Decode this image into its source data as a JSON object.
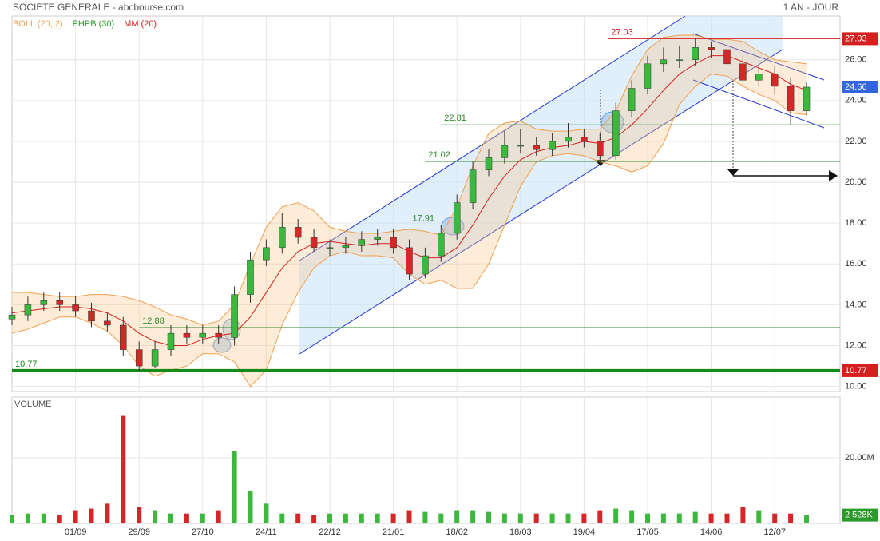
{
  "chart_data": {
    "type": "candlestick",
    "title": "SOCIETE GENERALE - abcbourse.com",
    "period": "1 AN - JOUR",
    "indicators": [
      {
        "name": "BOLL (20, 2)",
        "color": "#f0a050"
      },
      {
        "name": "PHPB (30)",
        "color": "#2a9a2a"
      },
      {
        "name": "MM (20)",
        "color": "#d62020"
      }
    ],
    "up_color": "#3cb83c",
    "down_color": "#d62728",
    "grid": true,
    "categories": [
      null,
      null,
      null,
      null,
      "01/09",
      null,
      null,
      null,
      "29/09",
      null,
      null,
      null,
      "27/10",
      null,
      null,
      null,
      "24/11",
      null,
      null,
      null,
      "22/12",
      null,
      null,
      null,
      "21/01",
      null,
      null,
      null,
      "18/02",
      null,
      null,
      null,
      "18/03",
      null,
      null,
      null,
      "19/04",
      null,
      null,
      null,
      "17/05",
      null,
      null,
      null,
      "14/06",
      null,
      null,
      null,
      "12/07",
      null,
      null
    ],
    "open": [
      13.3,
      13.5,
      14.0,
      14.2,
      14.0,
      13.7,
      13.2,
      13.0,
      11.8,
      11.0,
      11.8,
      12.6,
      12.4,
      12.6,
      12.4,
      14.5,
      16.2,
      16.8,
      17.8,
      17.3,
      16.8,
      16.8,
      16.9,
      17.2,
      17.3,
      16.8,
      15.5,
      16.4,
      17.5,
      19.0,
      20.6,
      21.2,
      21.8,
      21.8,
      21.6,
      22.0,
      22.2,
      22.0,
      21.3,
      23.5,
      24.6,
      25.8,
      26.0,
      26.0,
      26.6,
      26.5,
      25.8,
      25.0,
      25.3,
      24.7,
      23.5
    ],
    "high": [
      13.9,
      14.4,
      14.6,
      14.6,
      14.4,
      14.1,
      13.6,
      13.4,
      12.2,
      12.2,
      13.0,
      13.0,
      13.0,
      13.0,
      14.9,
      16.6,
      17.2,
      18.5,
      18.2,
      17.7,
      17.2,
      17.3,
      17.6,
      17.7,
      17.7,
      17.2,
      16.8,
      17.9,
      19.4,
      21.0,
      21.6,
      22.5,
      22.6,
      22.2,
      22.4,
      22.9,
      22.6,
      22.4,
      23.9,
      25.0,
      26.2,
      26.6,
      26.7,
      27.03,
      26.9,
      26.9,
      26.2,
      25.7,
      25.7,
      25.1,
      24.9
    ],
    "low": [
      13.0,
      13.2,
      13.7,
      13.7,
      13.4,
      12.9,
      12.7,
      11.5,
      10.77,
      10.9,
      11.5,
      12.1,
      12.1,
      12.1,
      12.0,
      14.1,
      15.9,
      16.5,
      17.0,
      16.6,
      16.4,
      16.5,
      16.6,
      16.9,
      16.5,
      15.2,
      15.3,
      16.1,
      17.2,
      18.7,
      20.3,
      20.9,
      21.4,
      21.3,
      21.3,
      21.7,
      21.7,
      20.9,
      21.1,
      23.2,
      24.3,
      25.4,
      25.6,
      25.7,
      26.1,
      25.5,
      24.6,
      24.7,
      24.3,
      22.8,
      23.3
    ],
    "close": [
      13.5,
      14.0,
      14.2,
      14.0,
      13.7,
      13.2,
      13.0,
      11.8,
      11.0,
      11.8,
      12.6,
      12.4,
      12.6,
      12.4,
      14.5,
      16.2,
      16.8,
      17.8,
      17.3,
      16.8,
      16.8,
      16.9,
      17.2,
      17.3,
      16.8,
      15.5,
      16.4,
      17.5,
      19.0,
      20.6,
      21.2,
      21.8,
      21.8,
      21.6,
      22.0,
      22.2,
      22.0,
      21.3,
      23.5,
      24.6,
      25.8,
      26.0,
      26.0,
      26.6,
      26.5,
      25.8,
      25.0,
      25.3,
      24.7,
      23.5,
      24.66
    ],
    "mm": [
      13.6,
      13.7,
      13.8,
      13.9,
      13.9,
      13.8,
      13.6,
      13.2,
      12.6,
      12.2,
      12.0,
      12.0,
      12.3,
      12.5,
      12.6,
      13.4,
      14.6,
      15.8,
      16.6,
      17.0,
      17.1,
      17.0,
      16.9,
      17.0,
      17.0,
      16.6,
      16.3,
      16.3,
      16.8,
      17.9,
      19.2,
      20.3,
      21.1,
      21.5,
      21.7,
      21.8,
      22.0,
      21.9,
      22.2,
      22.8,
      23.6,
      24.5,
      25.3,
      25.8,
      26.2,
      26.2,
      25.9,
      25.6,
      25.3,
      24.8,
      24.5
    ],
    "bollinger_upper": [
      14.6,
      14.6,
      14.5,
      14.4,
      14.4,
      14.5,
      14.5,
      14.4,
      14.2,
      13.9,
      13.5,
      13.3,
      13.0,
      13.2,
      14.0,
      16.0,
      17.8,
      18.8,
      19.0,
      18.6,
      17.8,
      17.6,
      17.5,
      17.5,
      17.6,
      17.7,
      17.6,
      17.4,
      18.8,
      20.8,
      22.4,
      22.9,
      23.0,
      22.6,
      22.5,
      22.5,
      22.6,
      22.6,
      23.5,
      25.2,
      26.5,
      27.1,
      27.2,
      27.2,
      27.0,
      27.0,
      26.9,
      26.4,
      26.0,
      25.9,
      25.8
    ],
    "bollinger_lower": [
      12.6,
      12.8,
      13.1,
      13.4,
      13.4,
      13.1,
      12.7,
      12.0,
      11.0,
      10.5,
      10.8,
      11.0,
      11.6,
      11.6,
      11.2,
      10.0,
      10.8,
      13.0,
      14.6,
      15.8,
      16.4,
      16.6,
      16.4,
      16.4,
      16.3,
      15.5,
      15.0,
      15.2,
      14.8,
      14.8,
      16.0,
      17.9,
      19.8,
      21.0,
      21.3,
      21.4,
      21.3,
      21.0,
      20.8,
      20.5,
      20.8,
      21.9,
      23.8,
      24.7,
      25.3,
      25.2,
      24.7,
      24.3,
      24.0,
      23.4,
      23.3
    ],
    "ylim": [
      9.75,
      27.75
    ],
    "yticks": [
      {
        "value": 10,
        "label": "10.00"
      },
      {
        "value": 12,
        "label": "12.00"
      },
      {
        "value": 14,
        "label": "14.00"
      },
      {
        "value": 16,
        "label": "16.00"
      },
      {
        "value": 18,
        "label": "18.00"
      },
      {
        "value": 20,
        "label": "20.00"
      },
      {
        "value": 22,
        "label": "22.00"
      },
      {
        "value": 24,
        "label": "24.00"
      },
      {
        "value": 26,
        "label": "26.00"
      }
    ],
    "levels": [
      {
        "value": 27.03,
        "color": "#d62020"
      },
      {
        "value": 22.81,
        "color": "#2a8a2a"
      },
      {
        "value": 21.02,
        "color": "#2a8a2a"
      },
      {
        "value": 17.91,
        "color": "#2a8a2a"
      },
      {
        "value": 12.88,
        "color": "#2a8a2a"
      },
      {
        "value": 10.77,
        "color": "#178a17"
      }
    ],
    "volume": {
      "title": "VOLUME",
      "values": [
        2.5,
        3,
        3,
        2.5,
        4,
        4.5,
        6,
        33,
        5,
        4,
        3,
        3,
        3,
        4,
        22,
        10,
        6,
        3,
        3,
        2.5,
        3,
        3,
        3,
        3,
        3,
        4,
        3.5,
        3,
        4,
        4,
        3.5,
        3,
        3,
        3,
        3,
        3,
        3,
        4,
        4.5,
        4,
        3,
        3,
        3,
        3.5,
        3,
        3,
        5,
        4,
        3,
        3,
        2.528
      ],
      "last_label": "2 528K",
      "ylim": [
        0,
        38.5
      ],
      "yticks": [
        {
          "value": 20,
          "label": "20.00M"
        }
      ]
    }
  }
}
